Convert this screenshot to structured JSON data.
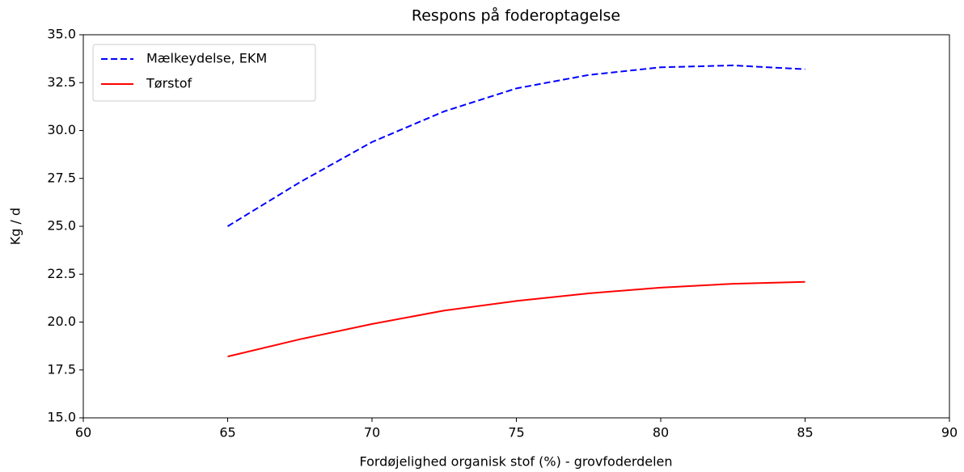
{
  "chart_data": {
    "type": "line",
    "title": "Respons på foderoptagelse",
    "xlabel": "Fordøjelighed organisk stof (%) - grovfoderdelen",
    "ylabel": "Kg / d",
    "x": [
      65,
      67.5,
      70,
      72.5,
      75,
      77.5,
      80,
      82.5,
      85
    ],
    "series": [
      {
        "name": "Mælkeydelse, EKM",
        "color": "#0000ff",
        "linestyle": "dashed",
        "values": [
          25.0,
          27.3,
          29.4,
          31.0,
          32.2,
          32.9,
          33.3,
          33.4,
          33.2
        ]
      },
      {
        "name": "Tørstof",
        "color": "#ff0000",
        "linestyle": "solid",
        "values": [
          18.2,
          19.1,
          19.9,
          20.6,
          21.1,
          21.5,
          21.8,
          22.0,
          22.1
        ]
      }
    ],
    "xlim": [
      60,
      90
    ],
    "xticks": [
      60,
      65,
      70,
      75,
      80,
      85,
      90
    ],
    "ylim": [
      15,
      35
    ],
    "yticks": [
      {
        "value": 15,
        "label": "15.0"
      },
      {
        "value": 17.5,
        "label": "17.5"
      },
      {
        "value": 20,
        "label": "20.0"
      },
      {
        "value": 22.5,
        "label": "22.5"
      },
      {
        "value": 25,
        "label": "25.0"
      },
      {
        "value": 27.5,
        "label": "27.5"
      },
      {
        "value": 30,
        "label": "30.0"
      },
      {
        "value": 32.5,
        "label": "32.5"
      },
      {
        "value": 35,
        "label": "35.0"
      }
    ],
    "legend": "upper left",
    "grid": false
  }
}
